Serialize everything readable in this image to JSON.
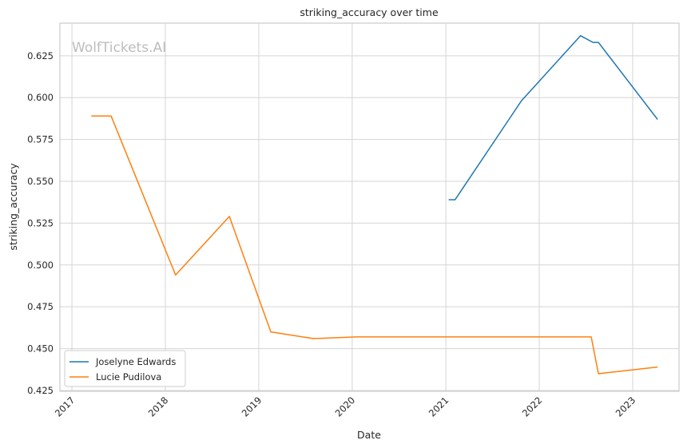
{
  "chart_data": {
    "type": "line",
    "title": "striking_accuracy over time",
    "xlabel": "Date",
    "ylabel": "striking_accuracy",
    "watermark": "WolfTickets.AI",
    "x_ticks": [
      "2017",
      "2018",
      "2019",
      "2020",
      "2021",
      "2022",
      "2023"
    ],
    "y_ticks": [
      "0.425",
      "0.450",
      "0.475",
      "0.500",
      "0.525",
      "0.550",
      "0.575",
      "0.600",
      "0.625"
    ],
    "xlim": [
      "2016-11-15",
      "2023-07-01"
    ],
    "ylim": [
      0.4245,
      0.6445
    ],
    "grid": true,
    "legend_position": "lower-left",
    "series": [
      {
        "name": "Joselyne Edwards",
        "color": "#1f77b4",
        "points": [
          [
            "2021-01-12",
            0.539
          ],
          [
            "2021-02-06",
            0.539
          ],
          [
            "2021-10-23",
            0.598
          ],
          [
            "2022-06-11",
            0.637
          ],
          [
            "2022-07-30",
            0.633
          ],
          [
            "2022-08-20",
            0.633
          ],
          [
            "2023-04-08",
            0.587
          ]
        ]
      },
      {
        "name": "Lucie Pudilova",
        "color": "#ff7f0e",
        "points": [
          [
            "2017-03-18",
            0.589
          ],
          [
            "2017-06-03",
            0.589
          ],
          [
            "2018-02-10",
            0.494
          ],
          [
            "2018-09-08",
            0.529
          ],
          [
            "2019-02-17",
            0.46
          ],
          [
            "2019-08-03",
            0.456
          ],
          [
            "2020-01-18",
            0.457
          ],
          [
            "2022-07-23",
            0.457
          ],
          [
            "2022-08-20",
            0.435
          ],
          [
            "2023-04-08",
            0.439
          ]
        ]
      }
    ]
  }
}
